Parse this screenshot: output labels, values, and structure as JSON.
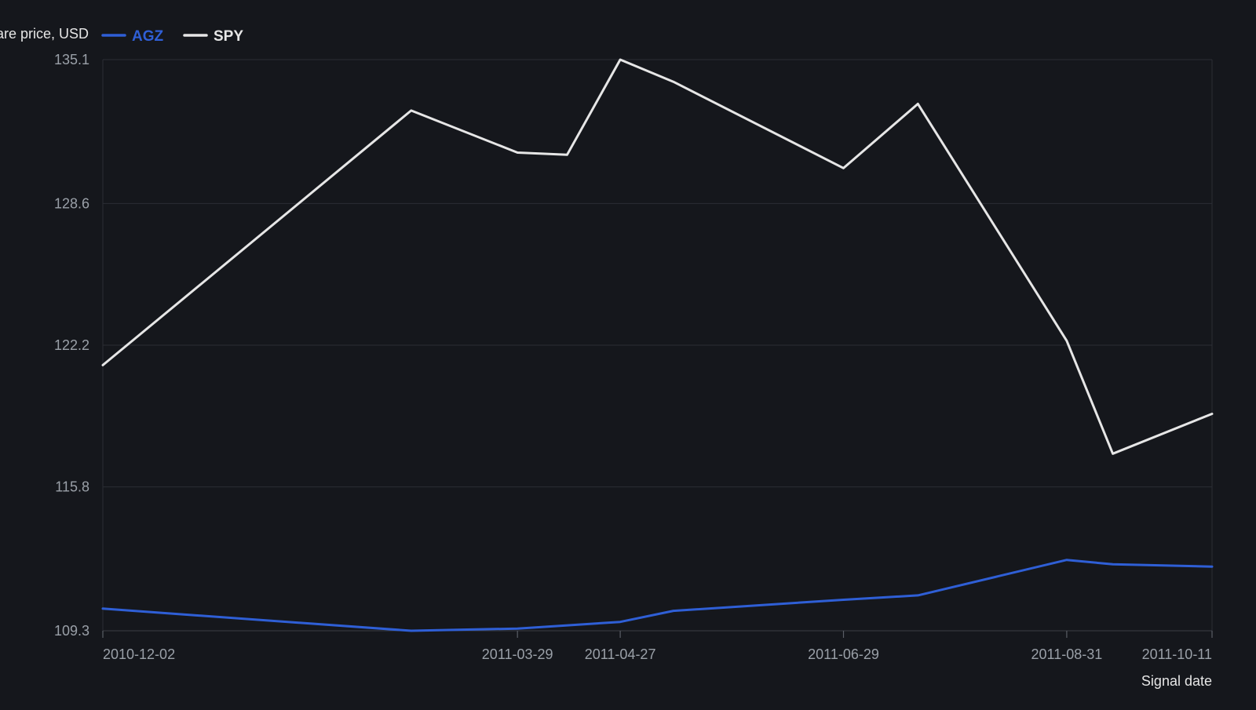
{
  "chart_data": {
    "type": "line",
    "ylabel": "Share price, USD",
    "xlabel": "Signal date",
    "ylim": [
      109.3,
      135.1
    ],
    "yticks": [
      "109.3",
      "115.8",
      "122.2",
      "128.6",
      "135.1"
    ],
    "x_start": "2010-12-02",
    "x_end": "2011-10-11",
    "xticks": [
      "2010-12-02",
      "2011-03-29",
      "2011-04-27",
      "2011-06-29",
      "2011-08-31",
      "2011-10-11"
    ],
    "grid": true,
    "legend_position": "top-left",
    "series": [
      {
        "name": "AGZ",
        "color": "#2f5fd6",
        "x": [
          "2010-12-02",
          "2011-02-27",
          "2011-03-29",
          "2011-04-27",
          "2011-05-12",
          "2011-06-29",
          "2011-07-20",
          "2011-08-31",
          "2011-09-13",
          "2011-10-11"
        ],
        "values": [
          110.3,
          109.3,
          109.4,
          109.7,
          110.2,
          110.7,
          110.9,
          112.5,
          112.3,
          112.2
        ]
      },
      {
        "name": "SPY",
        "color": "#e6e6e6",
        "x": [
          "2010-12-02",
          "2011-02-27",
          "2011-03-29",
          "2011-04-12",
          "2011-04-27",
          "2011-05-12",
          "2011-06-29",
          "2011-07-20",
          "2011-08-31",
          "2011-09-13",
          "2011-10-11"
        ],
        "values": [
          121.3,
          132.8,
          130.9,
          130.8,
          135.1,
          134.1,
          130.2,
          133.1,
          122.4,
          117.3,
          119.1
        ]
      }
    ]
  },
  "colors": {
    "background": "#15171c",
    "grid": "#2b2e34",
    "text": "#9aa0a8",
    "legend_text": "#e6e6e6"
  }
}
